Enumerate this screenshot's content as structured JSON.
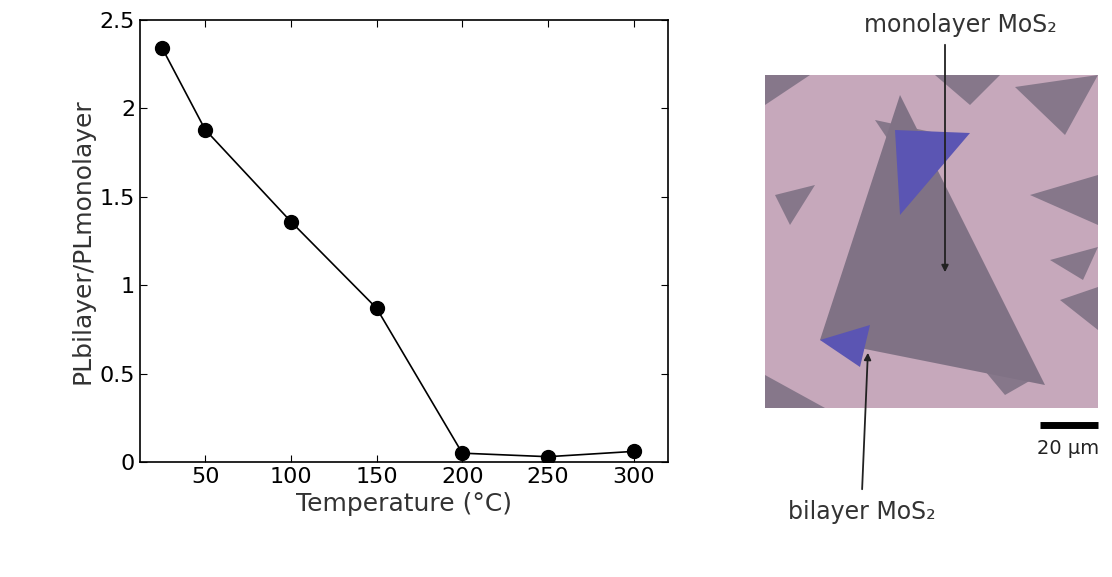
{
  "chart_data": {
    "type": "line",
    "xlabel": "Temperature (°C)",
    "ylabel": "PLbilayer/PLmonolayer",
    "x": [
      25,
      50,
      100,
      150,
      200,
      250,
      300
    ],
    "values": [
      2.34,
      1.88,
      1.36,
      0.87,
      0.05,
      0.03,
      0.06
    ],
    "color": "#000000",
    "marker": "o",
    "line_style": "solid",
    "xlim": [
      12,
      320
    ],
    "xticks": [
      50,
      100,
      150,
      200,
      250,
      300
    ],
    "ylim": [
      0,
      2.5
    ],
    "yticks": [
      0,
      0.5,
      1,
      1.5,
      2,
      2.5
    ],
    "grid": false
  },
  "image": {
    "monolayer_label": "monolayer MoS₂",
    "bilayer_label": "bilayer MoS₂",
    "scale_bar": "20 µm"
  }
}
